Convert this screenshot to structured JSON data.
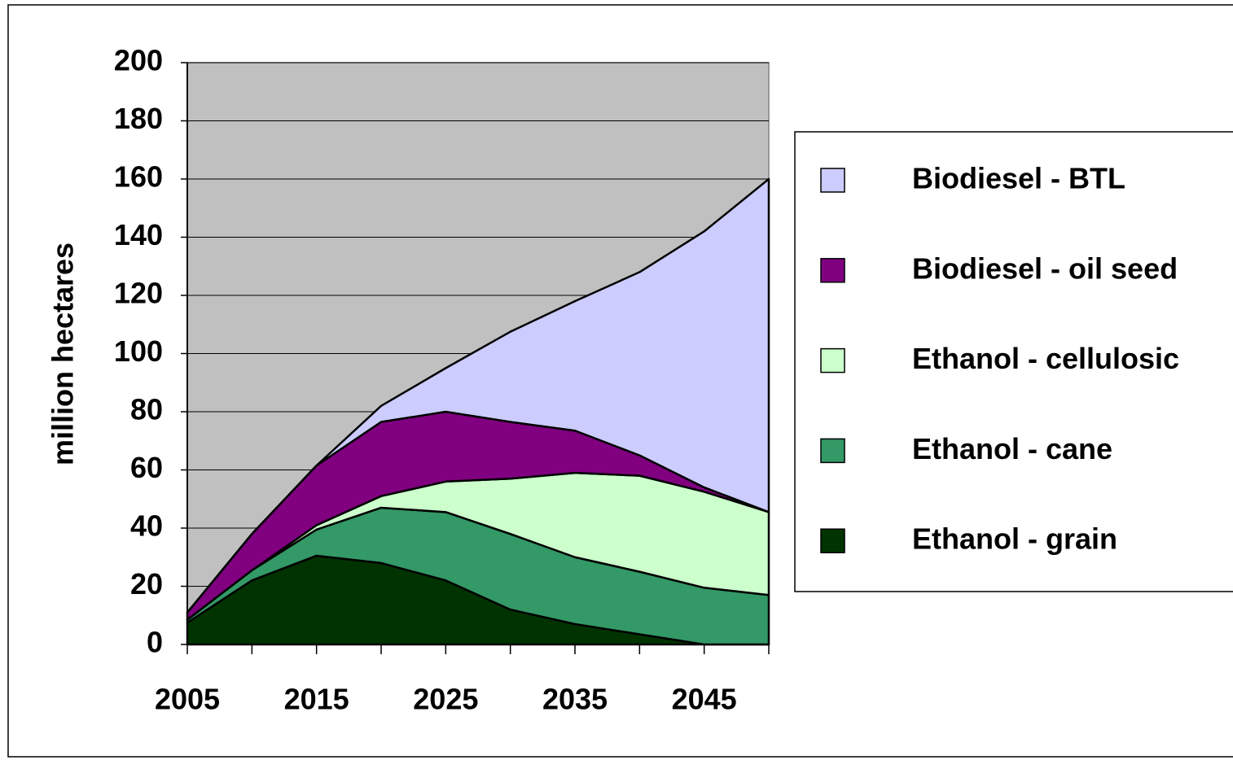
{
  "chart_data": {
    "type": "stacked_area",
    "ylabel": "million hectares",
    "x": [
      2005,
      2010,
      2015,
      2020,
      2025,
      2030,
      2035,
      2040,
      2045,
      2050
    ],
    "xlim": [
      2005,
      2050
    ],
    "xticks": [
      2005,
      2015,
      2025,
      2035,
      2045
    ],
    "ylim": [
      0,
      200
    ],
    "yticks": [
      0,
      20,
      40,
      60,
      80,
      100,
      120,
      140,
      160,
      180,
      200
    ],
    "grid": true,
    "legend": "right",
    "series": [
      {
        "name": "Ethanol - grain",
        "color": "#003300",
        "values": [
          7.5,
          22,
          30.5,
          28,
          22,
          12,
          7,
          3.5,
          0,
          0
        ]
      },
      {
        "name": "Ethanol - cane",
        "color": "#339966",
        "values": [
          1,
          3.5,
          9,
          19,
          23.5,
          26,
          23,
          21.5,
          19.5,
          17
        ]
      },
      {
        "name": "Ethanol - cellulosic",
        "color": "#ccffcc",
        "values": [
          0,
          0,
          1.5,
          4,
          10.5,
          19,
          29,
          33,
          33,
          28.5
        ]
      },
      {
        "name": "Biodiesel - oil seed",
        "color": "#800080",
        "values": [
          2.5,
          12.5,
          20.5,
          25.5,
          24,
          19.5,
          14.5,
          7,
          1.5,
          0
        ]
      },
      {
        "name": "Biodiesel - BTL",
        "color": "#ccccff",
        "values": [
          0,
          0,
          0,
          5.5,
          15,
          31,
          44.5,
          63,
          88,
          114.5
        ]
      }
    ]
  }
}
